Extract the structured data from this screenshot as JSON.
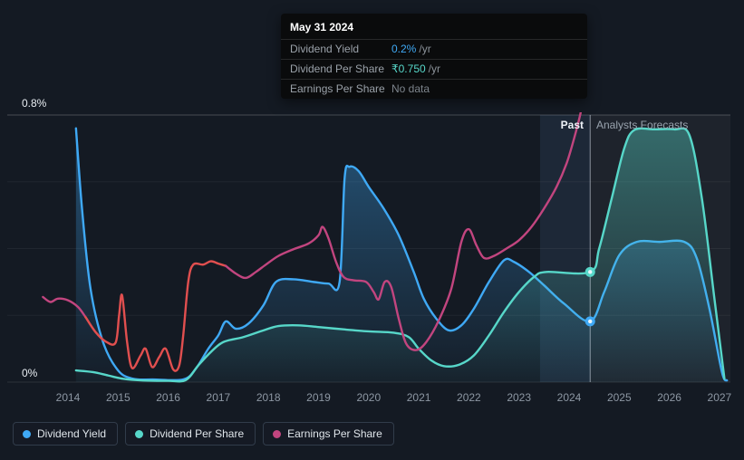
{
  "tooltip": {
    "date": "May 31 2024",
    "rows": [
      {
        "label": "Dividend Yield",
        "value": "0.2%",
        "suffix": "/yr",
        "value_color": "#3fa9f5"
      },
      {
        "label": "Dividend Per Share",
        "value": "₹0.750",
        "suffix": "/yr",
        "value_color": "#57d7c9"
      },
      {
        "label": "Earnings Per Share",
        "value": "No data",
        "suffix": "",
        "value_color": "#7d848c"
      }
    ]
  },
  "axis": {
    "y_top": "0.8%",
    "y_bottom": "0%"
  },
  "labels": {
    "past": "Past",
    "forecast": "Analysts Forecasts"
  },
  "legend": [
    {
      "label": "Dividend Yield",
      "color": "#3fa9f5"
    },
    {
      "label": "Dividend Per Share",
      "color": "#57d7c9"
    },
    {
      "label": "Earnings Per Share",
      "color": "#c2457f"
    }
  ],
  "chart_data": {
    "type": "line",
    "x_axis": {
      "ticks": [
        "2014",
        "2015",
        "2016",
        "2017",
        "2018",
        "2019",
        "2020",
        "2021",
        "2022",
        "2023",
        "2024",
        "2025",
        "2026",
        "2027"
      ],
      "min": 2013.4,
      "max": 2027.35
    },
    "y_axis": {
      "min": 0,
      "max": 0.8,
      "unit": "%",
      "top_label": "0.8%",
      "bottom_label": "0%",
      "gridlines": [
        0,
        0.2,
        0.4,
        0.6,
        0.8
      ]
    },
    "divider_x": 2024.42,
    "highlight_band": {
      "from": 2023.42,
      "to": 2024.42
    },
    "past_label": "Past",
    "forecast_label": "Analysts Forecasts",
    "legend_position": "bottom-left",
    "series": [
      {
        "name": "Dividend Yield",
        "color": "#3fa9f5",
        "fill": true,
        "marker": {
          "x": 2024.42,
          "y": 0.182
        },
        "points": [
          [
            2014.16,
            0.76
          ],
          [
            2014.28,
            0.52
          ],
          [
            2014.45,
            0.28
          ],
          [
            2014.7,
            0.12
          ],
          [
            2015.0,
            0.035
          ],
          [
            2015.3,
            0.01
          ],
          [
            2015.7,
            0.008
          ],
          [
            2016.3,
            0.008
          ],
          [
            2016.55,
            0.04
          ],
          [
            2016.8,
            0.1
          ],
          [
            2017.0,
            0.14
          ],
          [
            2017.15,
            0.182
          ],
          [
            2017.35,
            0.16
          ],
          [
            2017.6,
            0.175
          ],
          [
            2017.9,
            0.23
          ],
          [
            2018.15,
            0.3
          ],
          [
            2018.5,
            0.308
          ],
          [
            2018.9,
            0.3
          ],
          [
            2019.2,
            0.295
          ],
          [
            2019.42,
            0.3
          ],
          [
            2019.52,
            0.61
          ],
          [
            2019.62,
            0.645
          ],
          [
            2019.8,
            0.632
          ],
          [
            2020.0,
            0.585
          ],
          [
            2020.3,
            0.52
          ],
          [
            2020.6,
            0.44
          ],
          [
            2020.9,
            0.33
          ],
          [
            2021.1,
            0.25
          ],
          [
            2021.35,
            0.19
          ],
          [
            2021.6,
            0.155
          ],
          [
            2021.85,
            0.17
          ],
          [
            2022.1,
            0.22
          ],
          [
            2022.4,
            0.3
          ],
          [
            2022.7,
            0.365
          ],
          [
            2022.9,
            0.36
          ],
          [
            2023.2,
            0.33
          ],
          [
            2023.5,
            0.29
          ],
          [
            2023.9,
            0.235
          ],
          [
            2024.42,
            0.182
          ],
          [
            2024.7,
            0.27
          ],
          [
            2025.0,
            0.38
          ],
          [
            2025.35,
            0.42
          ],
          [
            2025.8,
            0.42
          ],
          [
            2026.3,
            0.42
          ],
          [
            2026.55,
            0.37
          ],
          [
            2026.8,
            0.22
          ],
          [
            2027.05,
            0.03
          ],
          [
            2027.15,
            0.005
          ]
        ]
      },
      {
        "name": "Dividend Per Share",
        "color": "#57d7c9",
        "fill": true,
        "marker": {
          "x": 2024.42,
          "y": 0.33
        },
        "points": [
          [
            2014.16,
            0.035
          ],
          [
            2014.5,
            0.03
          ],
          [
            2014.8,
            0.02
          ],
          [
            2015.1,
            0.01
          ],
          [
            2015.5,
            0.005
          ],
          [
            2016.0,
            0.004
          ],
          [
            2016.35,
            0.006
          ],
          [
            2016.6,
            0.05
          ],
          [
            2016.85,
            0.09
          ],
          [
            2017.1,
            0.12
          ],
          [
            2017.5,
            0.135
          ],
          [
            2017.9,
            0.155
          ],
          [
            2018.2,
            0.168
          ],
          [
            2018.6,
            0.17
          ],
          [
            2019.0,
            0.165
          ],
          [
            2019.5,
            0.158
          ],
          [
            2020.0,
            0.152
          ],
          [
            2020.5,
            0.148
          ],
          [
            2020.8,
            0.135
          ],
          [
            2021.0,
            0.1
          ],
          [
            2021.25,
            0.065
          ],
          [
            2021.5,
            0.048
          ],
          [
            2021.8,
            0.052
          ],
          [
            2022.1,
            0.08
          ],
          [
            2022.4,
            0.14
          ],
          [
            2022.7,
            0.21
          ],
          [
            2023.0,
            0.27
          ],
          [
            2023.3,
            0.315
          ],
          [
            2023.55,
            0.33
          ],
          [
            2024.42,
            0.33
          ],
          [
            2024.6,
            0.4
          ],
          [
            2024.85,
            0.55
          ],
          [
            2025.1,
            0.7
          ],
          [
            2025.3,
            0.755
          ],
          [
            2025.7,
            0.757
          ],
          [
            2026.1,
            0.757
          ],
          [
            2026.4,
            0.74
          ],
          [
            2026.65,
            0.55
          ],
          [
            2026.9,
            0.25
          ],
          [
            2027.1,
            0.01
          ]
        ]
      },
      {
        "name": "Earnings Per Share",
        "color": "#c2457f",
        "fill": false,
        "segments": [
          {
            "color": "#c2457f",
            "points": [
              [
                2013.5,
                0.255
              ],
              [
                2013.65,
                0.24
              ],
              [
                2013.8,
                0.25
              ],
              [
                2014.0,
                0.245
              ],
              [
                2014.2,
                0.225
              ],
              [
                2014.35,
                0.195
              ]
            ]
          },
          {
            "color": "#e14f4f",
            "points": [
              [
                2014.35,
                0.195
              ],
              [
                2014.55,
                0.15
              ],
              [
                2014.75,
                0.122
              ],
              [
                2014.95,
                0.118
              ],
              [
                2015.02,
                0.2
              ],
              [
                2015.08,
                0.26
              ],
              [
                2015.18,
                0.12
              ],
              [
                2015.28,
                0.042
              ],
              [
                2015.45,
                0.08
              ],
              [
                2015.55,
                0.1
              ],
              [
                2015.68,
                0.045
              ],
              [
                2015.82,
                0.075
              ],
              [
                2015.95,
                0.1
              ],
              [
                2016.1,
                0.038
              ],
              [
                2016.22,
                0.05
              ],
              [
                2016.3,
                0.14
              ],
              [
                2016.4,
                0.3
              ],
              [
                2016.5,
                0.352
              ],
              [
                2016.7,
                0.352
              ],
              [
                2016.85,
                0.362
              ],
              [
                2017.0,
                0.355
              ],
              [
                2017.15,
                0.348
              ]
            ]
          },
          {
            "color": "#c2457f",
            "points": [
              [
                2017.15,
                0.348
              ],
              [
                2017.35,
                0.325
              ],
              [
                2017.55,
                0.312
              ],
              [
                2017.75,
                0.33
              ],
              [
                2017.95,
                0.352
              ],
              [
                2018.2,
                0.378
              ],
              [
                2018.5,
                0.398
              ],
              [
                2018.8,
                0.415
              ],
              [
                2019.0,
                0.44
              ],
              [
                2019.08,
                0.465
              ],
              [
                2019.2,
                0.43
              ],
              [
                2019.35,
                0.36
              ],
              [
                2019.5,
                0.315
              ],
              [
                2019.7,
                0.305
              ],
              [
                2019.95,
                0.3
              ],
              [
                2020.1,
                0.27
              ],
              [
                2020.2,
                0.248
              ],
              [
                2020.32,
                0.3
              ],
              [
                2020.45,
                0.285
              ],
              [
                2020.6,
                0.19
              ],
              [
                2020.75,
                0.115
              ],
              [
                2020.95,
                0.096
              ],
              [
                2021.15,
                0.12
              ],
              [
                2021.4,
                0.185
              ],
              [
                2021.65,
                0.28
              ],
              [
                2021.85,
                0.42
              ],
              [
                2022.0,
                0.458
              ],
              [
                2022.15,
                0.41
              ],
              [
                2022.3,
                0.372
              ],
              [
                2022.5,
                0.378
              ],
              [
                2022.75,
                0.4
              ],
              [
                2023.0,
                0.425
              ],
              [
                2023.25,
                0.465
              ],
              [
                2023.5,
                0.52
              ],
              [
                2023.75,
                0.585
              ],
              [
                2023.95,
                0.655
              ],
              [
                2024.1,
                0.73
              ],
              [
                2024.22,
                0.8
              ],
              [
                2024.3,
                0.86
              ]
            ]
          }
        ]
      }
    ]
  }
}
